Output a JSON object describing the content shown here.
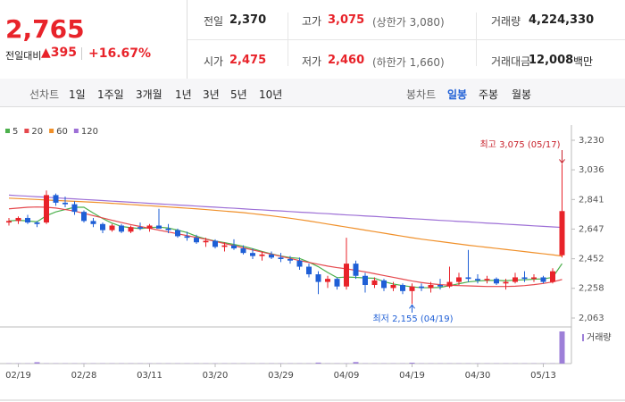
{
  "quote": {
    "price": "2,765",
    "change_label": "전일대비",
    "change": "395",
    "change_pct": "+16.67%"
  },
  "summary": [
    {
      "label": "전일",
      "value": "2,370"
    },
    {
      "label": "고가",
      "value": "3,075",
      "note": "(상한가 3,080)"
    },
    {
      "label": "거래량",
      "value": "4,224,330"
    },
    {
      "label": "시가",
      "value": "2,475"
    },
    {
      "label": "저가",
      "value": "2,460",
      "note": "(하한가 1,660)"
    },
    {
      "label": "거래대금",
      "value": "12,008",
      "note": "백만"
    }
  ],
  "toolbar": {
    "line_chart": "선차트",
    "periods": [
      "1일",
      "1주일",
      "3개월",
      "1년",
      "3년",
      "5년",
      "10년"
    ],
    "candle_chart": "봉차트",
    "candle_periods": [
      "일봉",
      "주봉",
      "월봉"
    ]
  },
  "chart_data": {
    "type": "candlestick",
    "categories": [
      null,
      "02/19",
      null,
      null,
      null,
      null,
      null,
      null,
      "02/28",
      null,
      null,
      null,
      null,
      null,
      null,
      "03/11",
      null,
      null,
      null,
      null,
      null,
      null,
      "03/20",
      null,
      null,
      null,
      null,
      null,
      null,
      "03/29",
      null,
      null,
      null,
      null,
      null,
      null,
      "04/09",
      null,
      null,
      null,
      null,
      null,
      null,
      "04/19",
      null,
      null,
      null,
      null,
      null,
      null,
      "04/30",
      null,
      null,
      null,
      null,
      null,
      null,
      "05/13",
      null,
      null
    ],
    "open": [
      2690,
      2700,
      2720,
      2690,
      2690,
      2870,
      2820,
      2810,
      2760,
      2700,
      2680,
      2640,
      2670,
      2630,
      2660,
      2650,
      2670,
      2650,
      2640,
      2600,
      2590,
      2560,
      2570,
      2530,
      2540,
      2520,
      2490,
      2470,
      2480,
      2460,
      2450,
      2440,
      2400,
      2350,
      2300,
      2320,
      2270,
      2420,
      2340,
      2280,
      2310,
      2260,
      2280,
      2240,
      2270,
      2260,
      2280,
      2270,
      2300,
      2330,
      2320,
      2310,
      2320,
      2290,
      2300,
      2330,
      2320,
      2330,
      2300,
      2475
    ],
    "high": [
      2720,
      2730,
      2740,
      2700,
      2900,
      2880,
      2860,
      2830,
      2770,
      2720,
      2690,
      2680,
      2680,
      2670,
      2690,
      2680,
      2780,
      2680,
      2650,
      2630,
      2610,
      2590,
      2580,
      2560,
      2580,
      2540,
      2520,
      2500,
      2500,
      2490,
      2470,
      2460,
      2420,
      2370,
      2340,
      2330,
      2590,
      2440,
      2360,
      2330,
      2320,
      2300,
      2290,
      2290,
      2290,
      2300,
      2320,
      2400,
      2360,
      2510,
      2350,
      2340,
      2330,
      2320,
      2360,
      2370,
      2350,
      2340,
      2390,
      3075
    ],
    "low": [
      2670,
      2680,
      2680,
      2660,
      2680,
      2800,
      2790,
      2740,
      2690,
      2660,
      2620,
      2630,
      2620,
      2620,
      2640,
      2630,
      2650,
      2620,
      2590,
      2570,
      2550,
      2530,
      2520,
      2500,
      2510,
      2480,
      2450,
      2440,
      2450,
      2430,
      2420,
      2380,
      2330,
      2220,
      2260,
      2250,
      2250,
      2320,
      2230,
      2260,
      2240,
      2240,
      2220,
      2155,
      2240,
      2230,
      2250,
      2260,
      2280,
      2300,
      2290,
      2290,
      2280,
      2250,
      2290,
      2300,
      2300,
      2290,
      2290,
      2460
    ],
    "close": [
      2700,
      2720,
      2690,
      2680,
      2870,
      2820,
      2810,
      2760,
      2700,
      2680,
      2640,
      2670,
      2630,
      2660,
      2650,
      2670,
      2650,
      2640,
      2600,
      2590,
      2560,
      2570,
      2530,
      2540,
      2520,
      2490,
      2470,
      2480,
      2460,
      2450,
      2440,
      2400,
      2350,
      2300,
      2320,
      2270,
      2420,
      2340,
      2280,
      2310,
      2260,
      2280,
      2240,
      2270,
      2260,
      2280,
      2270,
      2300,
      2330,
      2320,
      2310,
      2320,
      2290,
      2300,
      2330,
      2320,
      2330,
      2300,
      2370,
      2765
    ],
    "up_color": "#e8232a",
    "down_color": "#1f5fd6",
    "moving_averages": [
      {
        "name": "5",
        "color": "#4cb04c",
        "values": [
          2700,
          2705,
          2700,
          2695,
          2735,
          2760,
          2775,
          2790,
          2790,
          2752,
          2716,
          2686,
          2664,
          2656,
          2650,
          2656,
          2660,
          2654,
          2640,
          2624,
          2600,
          2582,
          2568,
          2558,
          2546,
          2534,
          2518,
          2500,
          2484,
          2470,
          2460,
          2454,
          2430,
          2400,
          2362,
          2328,
          2332,
          2330,
          2326,
          2324,
          2302,
          2286,
          2276,
          2268,
          2262,
          2262,
          2264,
          2276,
          2288,
          2300,
          2306,
          2310,
          2310,
          2308,
          2312,
          2314,
          2318,
          2320,
          2330,
          2420
        ]
      },
      {
        "name": "20",
        "color": "#e5484d",
        "values": [
          2780,
          2785,
          2790,
          2792,
          2790,
          2785,
          2775,
          2765,
          2750,
          2735,
          2720,
          2705,
          2690,
          2676,
          2664,
          2652,
          2640,
          2628,
          2616,
          2604,
          2592,
          2580,
          2566,
          2552,
          2538,
          2524,
          2510,
          2496,
          2482,
          2468,
          2454,
          2440,
          2428,
          2416,
          2404,
          2394,
          2386,
          2376,
          2366,
          2354,
          2342,
          2330,
          2318,
          2306,
          2296,
          2288,
          2282,
          2278,
          2276,
          2274,
          2272,
          2270,
          2270,
          2270,
          2272,
          2276,
          2282,
          2290,
          2300,
          2316
        ]
      },
      {
        "name": "60",
        "color": "#f0902a",
        "values": [
          2850,
          2847,
          2844,
          2841,
          2838,
          2835,
          2832,
          2829,
          2826,
          2823,
          2820,
          2816,
          2812,
          2808,
          2804,
          2800,
          2796,
          2792,
          2788,
          2784,
          2780,
          2775,
          2770,
          2765,
          2760,
          2755,
          2748,
          2741,
          2734,
          2726,
          2718,
          2709,
          2700,
          2690,
          2680,
          2670,
          2660,
          2650,
          2640,
          2630,
          2620,
          2610,
          2600,
          2590,
          2581,
          2573,
          2565,
          2557,
          2549,
          2541,
          2534,
          2527,
          2520,
          2513,
          2506,
          2499,
          2492,
          2485,
          2478,
          2470
        ]
      },
      {
        "name": "120",
        "color": "#9d6fd6",
        "values": [
          2870,
          2866,
          2863,
          2859,
          2856,
          2852,
          2848,
          2845,
          2841,
          2838,
          2834,
          2830,
          2827,
          2823,
          2820,
          2816,
          2812,
          2809,
          2805,
          2802,
          2798,
          2794,
          2791,
          2787,
          2784,
          2780,
          2776,
          2773,
          2769,
          2766,
          2762,
          2758,
          2755,
          2751,
          2748,
          2744,
          2740,
          2737,
          2733,
          2730,
          2726,
          2722,
          2719,
          2715,
          2712,
          2708,
          2704,
          2701,
          2697,
          2694,
          2690,
          2686,
          2683,
          2679,
          2676,
          2672,
          2668,
          2665,
          2661,
          2658
        ]
      }
    ],
    "volume": {
      "name": "거래량",
      "color": "#9d7fd8",
      "values": [
        30000,
        30000,
        30000,
        180000,
        30000,
        30000,
        30000,
        30000,
        30000,
        30000,
        30000,
        30000,
        30000,
        30000,
        30000,
        30000,
        30000,
        30000,
        30000,
        30000,
        30000,
        30000,
        30000,
        30000,
        30000,
        30000,
        30000,
        30000,
        30000,
        30000,
        30000,
        30000,
        30000,
        130000,
        30000,
        30000,
        30000,
        200000,
        30000,
        30000,
        30000,
        30000,
        30000,
        120000,
        30000,
        30000,
        30000,
        30000,
        30000,
        30000,
        30000,
        30000,
        30000,
        30000,
        30000,
        30000,
        30000,
        30000,
        30000,
        4224330
      ]
    },
    "ylim": [
      2063,
      3230
    ],
    "yticks": [
      {
        "value": 3230,
        "label": "3,230"
      },
      {
        "value": 3036,
        "label": "3,036"
      },
      {
        "value": 2841,
        "label": "2,841"
      },
      {
        "value": 2647,
        "label": "2,647"
      },
      {
        "value": 2452,
        "label": "2,452"
      },
      {
        "value": 2258,
        "label": "2,258"
      },
      {
        "value": 2063,
        "label": "2,063"
      }
    ],
    "annotations": [
      {
        "text": "최고 3,075 (05/17)",
        "color": "#c8202a"
      },
      {
        "text": "최저 2,155 (04/19)",
        "color": "#1f5fd6"
      }
    ]
  }
}
